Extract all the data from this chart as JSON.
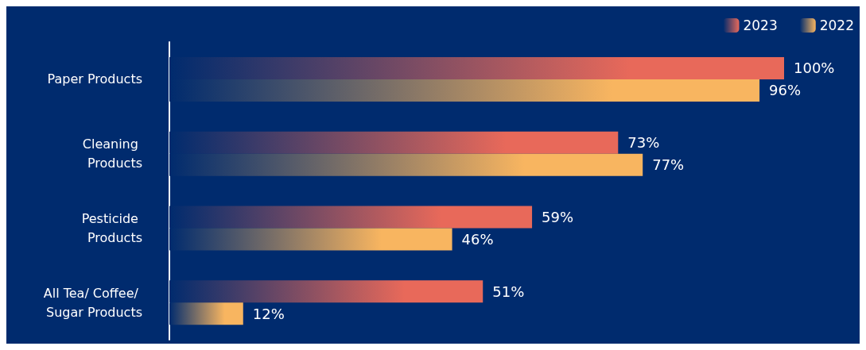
{
  "chart_data": {
    "type": "bar",
    "orientation": "horizontal",
    "categories": [
      "Paper Products",
      "Cleaning Products",
      "Pesticide Products",
      "All Tea/ Coffee/ Sugar Products"
    ],
    "series": [
      {
        "name": "2023",
        "color": "#e8695a",
        "values": [
          100,
          73,
          59,
          51
        ],
        "value_labels": [
          "100%",
          "73%",
          "59%",
          "51%"
        ]
      },
      {
        "name": "2022",
        "color": "#f8b560",
        "values": [
          96,
          77,
          46,
          12
        ],
        "value_labels": [
          "96%",
          "77%",
          "46%",
          "12%"
        ]
      }
    ],
    "legend": "top right"
  }
}
